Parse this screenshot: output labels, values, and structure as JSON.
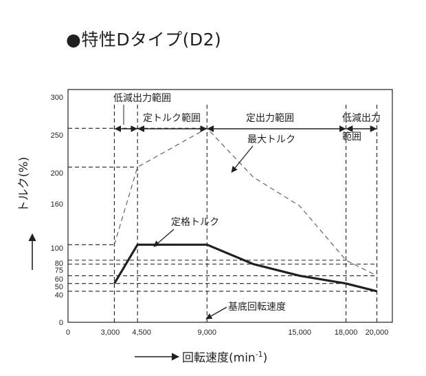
{
  "title": "●特性Dタイプ(D2)",
  "chart_data": {
    "type": "line",
    "xlabel": "回転速度(min",
    "xlabel_sup": "-1",
    "xlabel_close": ")",
    "ylabel": "トルク(%)",
    "xlim": [
      0,
      21000
    ],
    "ylim": [
      0,
      300
    ],
    "x_ticks": [
      {
        "value": 0,
        "label": "0"
      },
      {
        "value": 3000,
        "label": "3,000"
      },
      {
        "value": 4500,
        "label": "4,500"
      },
      {
        "value": 9000,
        "label": "9,000"
      },
      {
        "value": 15000,
        "label": "15,000"
      },
      {
        "value": 18000,
        "label": "18,000"
      },
      {
        "value": 20000,
        "label": "20,000"
      }
    ],
    "y_ticks": [
      {
        "value": 0,
        "label": "0"
      },
      {
        "value": 40,
        "label": "40"
      },
      {
        "value": 50,
        "label": "50"
      },
      {
        "value": 60,
        "label": "60"
      },
      {
        "value": 75,
        "label": "75"
      },
      {
        "value": 80,
        "label": "80"
      },
      {
        "value": 100,
        "label": "100"
      },
      {
        "value": 160,
        "label": "160"
      },
      {
        "value": 200,
        "label": "200"
      },
      {
        "value": 250,
        "label": "250"
      },
      {
        "value": 300,
        "label": "300"
      }
    ],
    "series": [
      {
        "name": "定格トルク",
        "style": "solid",
        "x": [
          3000,
          4500,
          9000,
          12000,
          15000,
          18000,
          20000
        ],
        "y": [
          50,
          100,
          100,
          75,
          60,
          50,
          40
        ]
      },
      {
        "name": "最大トルク",
        "style": "dashed",
        "x": [
          3000,
          4500,
          9000,
          12000,
          15000,
          18000,
          20000
        ],
        "y": [
          100,
          200,
          250,
          187,
          150,
          80,
          60
        ]
      }
    ],
    "guides": {
      "verticals": [
        3000,
        4500,
        9000,
        18000,
        20000
      ],
      "horizontals": [
        {
          "y": 250,
          "x0": 0,
          "x1": 9000
        },
        {
          "y": 200,
          "x0": 0,
          "x1": 4500
        },
        {
          "y": 100,
          "x0": 0,
          "x1": 3000
        },
        {
          "y": 80,
          "x0": 0,
          "x1": 18000
        },
        {
          "y": 75,
          "x0": 0,
          "x1": 20000
        },
        {
          "y": 60,
          "x0": 0,
          "x1": 20000
        },
        {
          "y": 50,
          "x0": 0,
          "x1": 18000
        },
        {
          "y": 40,
          "x0": 0,
          "x1": 20000
        }
      ]
    },
    "regions": [
      {
        "label": "低減出力範囲",
        "from": 3000,
        "to": 4500
      },
      {
        "label": "定トルク範囲",
        "from": 4500,
        "to": 9000
      },
      {
        "label": "定出力範囲",
        "from": 9000,
        "to": 18000
      },
      {
        "label": "低減出力",
        "label2": "範囲",
        "from": 18000,
        "to": 20000
      }
    ],
    "annotations": {
      "max_torque": "最大トルク",
      "rated_torque": "定格トルク",
      "base_speed": "基底回転速度"
    },
    "grid": false
  }
}
